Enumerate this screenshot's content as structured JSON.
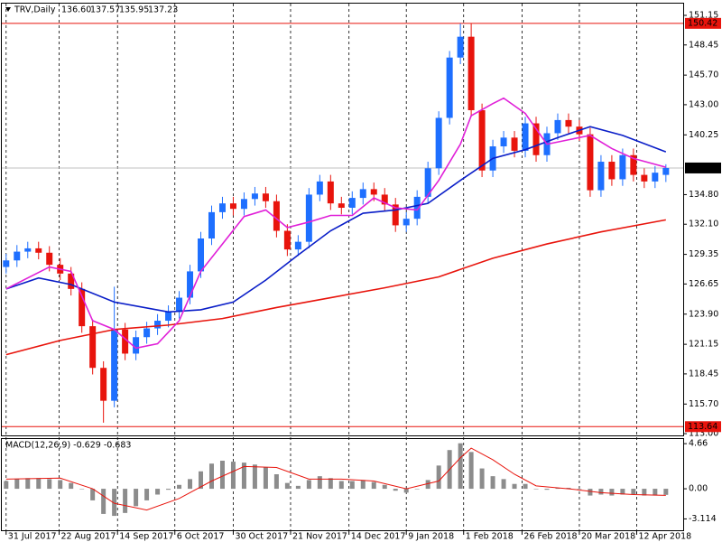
{
  "chart_data": [
    {
      "type": "candlestick",
      "header": "TRV,Daily",
      "ohlc_labels": [
        "136.60",
        "137.57",
        "135.95",
        "137.23"
      ],
      "up_color": "#1e6fff",
      "down_color": "#e8140c",
      "open": [
        128.2,
        128.8,
        129.6,
        129.9,
        129.5,
        128.4,
        127.6,
        126.2,
        122.8,
        119.0,
        116.0,
        122.5,
        120.3,
        121.8,
        122.6,
        123.3,
        124.1,
        125.4,
        127.8,
        130.8,
        133.2,
        134.0,
        133.5,
        134.4,
        134.9,
        134.2,
        131.5,
        129.8,
        130.5,
        134.8,
        136.0,
        134.0,
        133.6,
        134.5,
        135.3,
        134.8,
        133.9,
        132.0,
        132.6,
        134.6,
        137.2,
        141.8,
        147.3,
        149.2,
        142.5,
        137.0,
        139.2,
        140.0,
        138.8,
        141.3,
        138.4,
        140.4,
        141.6,
        141.0,
        140.3,
        135.2,
        137.8,
        136.2,
        138.4,
        136.6,
        136.0,
        136.6
      ],
      "high": [
        129.4,
        130.2,
        130.5,
        130.5,
        130.1,
        129.0,
        128.2,
        126.8,
        123.4,
        119.6,
        126.4,
        123.1,
        122.4,
        123.2,
        123.9,
        124.7,
        126.0,
        128.4,
        131.4,
        133.8,
        134.6,
        134.6,
        135.0,
        135.5,
        135.5,
        134.8,
        132.1,
        131.1,
        135.4,
        136.6,
        136.6,
        134.6,
        135.1,
        135.9,
        135.9,
        135.4,
        134.5,
        133.2,
        135.2,
        137.8,
        142.4,
        147.9,
        150.4,
        150.4,
        143.1,
        139.8,
        140.6,
        140.6,
        141.9,
        141.9,
        141.0,
        142.2,
        142.2,
        141.6,
        140.9,
        138.4,
        138.4,
        139.0,
        139.0,
        137.2,
        137.4,
        137.57
      ],
      "low": [
        127.6,
        128.2,
        129.0,
        128.9,
        127.8,
        127.0,
        125.6,
        122.2,
        118.4,
        114.0,
        115.4,
        119.7,
        119.7,
        121.2,
        122.0,
        122.7,
        123.5,
        124.8,
        127.2,
        130.2,
        132.6,
        132.9,
        132.9,
        133.8,
        133.6,
        130.9,
        129.2,
        129.2,
        129.9,
        134.2,
        133.4,
        133.0,
        133.0,
        133.9,
        134.2,
        133.3,
        131.4,
        131.4,
        132.0,
        134.0,
        136.6,
        141.2,
        146.7,
        141.9,
        136.4,
        136.4,
        138.6,
        138.2,
        138.2,
        137.8,
        137.8,
        139.8,
        140.4,
        139.7,
        134.6,
        134.6,
        135.6,
        135.6,
        136.0,
        135.4,
        135.4,
        135.95
      ],
      "close": [
        128.8,
        129.6,
        129.9,
        129.5,
        128.4,
        127.6,
        126.2,
        122.8,
        119.0,
        116.0,
        122.5,
        120.3,
        121.8,
        122.6,
        123.3,
        124.1,
        125.4,
        127.8,
        130.8,
        133.2,
        134.0,
        133.5,
        134.4,
        134.9,
        134.2,
        131.5,
        129.8,
        130.5,
        134.8,
        136.0,
        134.0,
        133.6,
        134.5,
        135.3,
        134.8,
        133.9,
        132.0,
        132.6,
        134.6,
        137.2,
        141.8,
        147.3,
        149.2,
        142.5,
        137.0,
        139.2,
        140.0,
        138.8,
        141.3,
        138.4,
        140.4,
        141.6,
        141.0,
        140.3,
        135.2,
        137.8,
        136.2,
        138.4,
        136.6,
        136.0,
        136.8,
        137.23
      ],
      "series": [
        {
          "color": "#e8140c",
          "x": [
            0,
            5,
            10,
            15,
            20,
            25,
            30,
            35,
            40,
            45,
            50,
            55,
            61
          ],
          "values": [
            120.2,
            121.5,
            122.5,
            122.9,
            123.5,
            124.5,
            125.4,
            126.3,
            127.3,
            129.0,
            130.3,
            131.4,
            132.5
          ]
        },
        {
          "color": "#0a1ec8",
          "x": [
            0,
            3,
            6,
            10,
            15,
            18,
            21,
            24,
            27,
            30,
            33,
            36,
            39,
            42,
            45,
            48,
            51,
            54,
            57,
            61
          ],
          "values": [
            126.2,
            127.2,
            126.6,
            125.0,
            124.1,
            124.3,
            125.0,
            127.0,
            129.3,
            131.5,
            133.1,
            133.4,
            134.0,
            136.1,
            138.1,
            138.9,
            140.0,
            141.0,
            140.2,
            138.7
          ]
        },
        {
          "color": "#e020d8",
          "x": [
            0,
            4,
            6,
            8,
            10,
            12,
            14,
            16,
            18,
            20,
            22,
            24,
            26,
            28,
            30,
            32,
            34,
            36,
            38,
            40,
            42,
            43,
            45,
            46,
            48,
            50,
            52,
            54,
            56,
            58,
            61
          ],
          "values": [
            126.2,
            128.2,
            127.8,
            123.3,
            122.5,
            120.8,
            121.2,
            123.3,
            127.8,
            130.3,
            132.8,
            133.4,
            131.8,
            132.3,
            132.9,
            132.9,
            134.5,
            133.6,
            133.4,
            136.1,
            139.4,
            142.0,
            143.1,
            143.6,
            142.2,
            139.4,
            139.8,
            140.2,
            139.0,
            138.1,
            137.3
          ]
        }
      ],
      "hlines": [
        {
          "value": 150.42,
          "color": "#e8140c"
        },
        {
          "value": 113.64,
          "color": "#e8140c"
        },
        {
          "value": 137.23,
          "color": "#c0c0c0"
        }
      ],
      "ylim": [
        112.84,
        152.22
      ],
      "yticks": [
        151.15,
        148.45,
        {
          "value": 145.7,
          "label": "145.70"
        },
        {
          "value": 143.0,
          "label": "143.00"
        },
        140.25,
        {
          "value": 134.8,
          "label": "134.80"
        },
        {
          "value": 132.1,
          "label": "132.10"
        },
        129.35,
        126.65,
        {
          "value": 123.9,
          "label": "123.90"
        },
        121.15,
        118.45,
        {
          "value": 115.7,
          "label": "115.70"
        },
        {
          "value": 113.0,
          "label": "113.00"
        }
      ],
      "xticks": [
        {
          "value": 0,
          "label": "31 Jul 2017"
        },
        {
          "value": 4.9,
          "label": "22 Aug 2017"
        },
        {
          "value": 10.3,
          "label": "14 Sep 2017"
        },
        {
          "value": 15.6,
          "label": "6 Oct 2017"
        },
        {
          "value": 21,
          "label": "30 Oct 2017"
        },
        {
          "value": 26.3,
          "label": "21 Nov 2017"
        },
        {
          "value": 31.7,
          "label": "14 Dec 2017"
        },
        {
          "value": 37,
          "label": "9 Jan 2018"
        },
        {
          "value": 42.3,
          "label": "1 Feb 2018"
        },
        {
          "value": 47.7,
          "label": "26 Feb 2018"
        },
        {
          "value": 53,
          "label": "20 Mar 2018"
        },
        {
          "value": 58.3,
          "label": "12 Apr 2018"
        }
      ],
      "xlim": [
        -0.4,
        62.6
      ]
    },
    {
      "type": "macd",
      "label": "MACD(12,26,9) -0.629 -0.683",
      "histogram_color": "#8c8c8c",
      "values": [
        0.8,
        1.0,
        1.1,
        1.1,
        1.0,
        0.9,
        0.6,
        0.0,
        -1.2,
        -2.6,
        -2.8,
        -2.5,
        -1.8,
        -1.2,
        -0.6,
        -0.1,
        0.4,
        1.0,
        1.8,
        2.6,
        2.9,
        2.8,
        2.7,
        2.5,
        2.2,
        1.5,
        0.6,
        0.3,
        0.9,
        1.3,
        1.1,
        0.8,
        0.8,
        0.9,
        0.7,
        0.4,
        -0.2,
        -0.4,
        0.0,
        0.9,
        2.4,
        4.0,
        4.7,
        3.8,
        2.1,
        1.3,
        1.0,
        0.5,
        0.5,
        0.0,
        -0.1,
        0.1,
        0.1,
        0.0,
        -0.7,
        -0.6,
        -0.7,
        -0.6,
        -0.6,
        -0.7,
        -0.7,
        -0.63
      ],
      "signal": {
        "color": "#e8140c",
        "x": [
          0,
          5,
          8,
          10,
          13,
          16,
          19,
          22,
          25,
          28,
          31,
          34,
          37,
          40,
          42,
          43,
          45,
          47,
          49,
          52,
          55,
          58,
          61
        ],
        "values": [
          1.0,
          1.1,
          0.0,
          -1.5,
          -2.2,
          -1.0,
          0.8,
          2.3,
          2.2,
          1.0,
          1.0,
          0.8,
          0.0,
          0.8,
          3.2,
          4.2,
          3.0,
          1.5,
          0.3,
          0.0,
          -0.4,
          -0.6,
          -0.68
        ]
      },
      "ylim": [
        -4.38,
        5.14
      ],
      "yticks": [
        4.66,
        {
          "value": 0,
          "label": "0.00"
        },
        -3.114
      ]
    }
  ]
}
